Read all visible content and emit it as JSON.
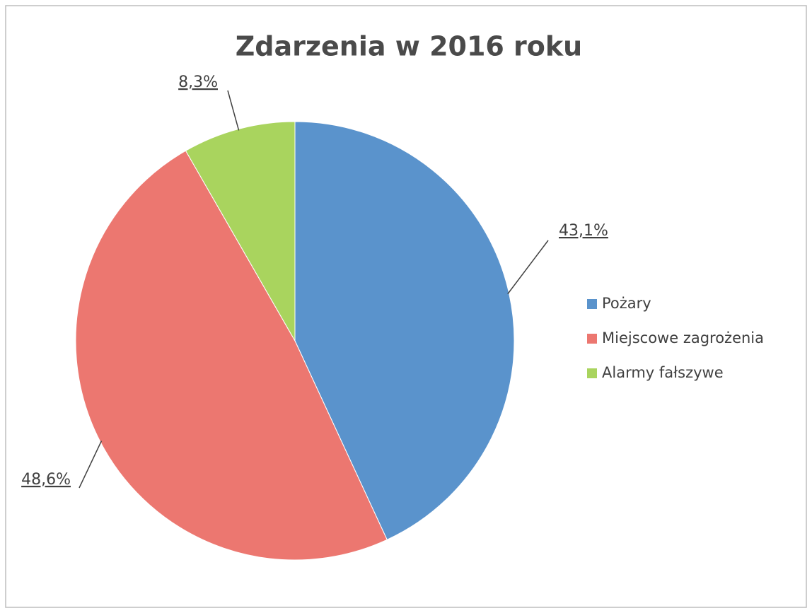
{
  "chart_data": {
    "type": "pie",
    "title": "Zdarzenia w 2016 roku",
    "categories": [
      "Pożary",
      "Miejscowe zagrożenia",
      "Alarmy fałszywe"
    ],
    "values": [
      43.1,
      48.6,
      8.3
    ],
    "value_labels": [
      "43,1%",
      "48,6%",
      "8,3%"
    ],
    "colors": [
      "#5a93cc",
      "#ec7770",
      "#a9d45e"
    ],
    "legend": "right"
  }
}
